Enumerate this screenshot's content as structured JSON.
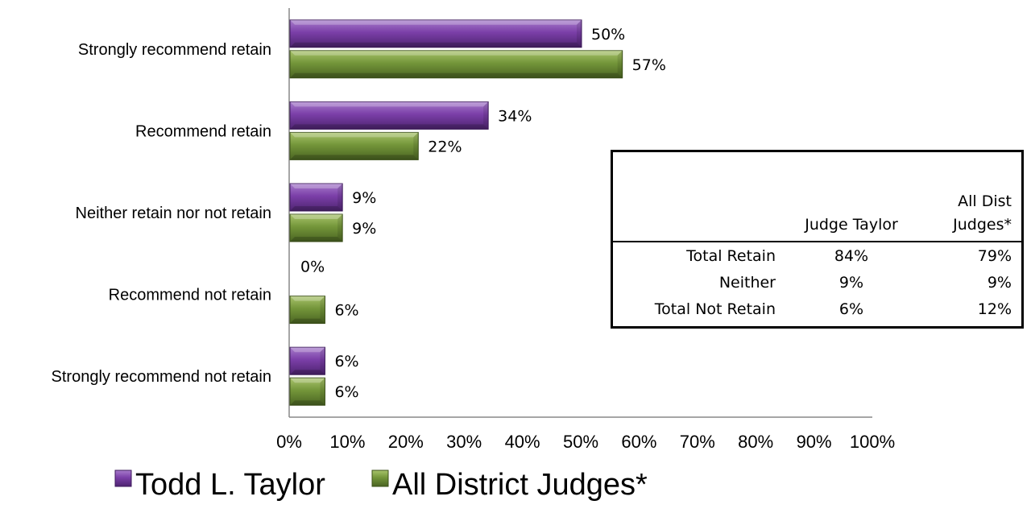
{
  "chart_data": {
    "type": "bar",
    "orientation": "horizontal",
    "categories": [
      "Strongly recommend retain",
      "Recommend retain",
      "Neither retain nor not retain",
      "Recommend not retain",
      "Strongly recommend not retain"
    ],
    "series": [
      {
        "name": "Todd L. Taylor",
        "values": [
          50,
          34,
          9,
          0,
          6
        ],
        "labels": [
          "50%",
          "34%",
          "9%",
          "0%",
          "6%"
        ],
        "color": "#7B3FA8"
      },
      {
        "name": "All District Judges*",
        "values": [
          57,
          22,
          9,
          6,
          6
        ],
        "labels": [
          "57%",
          "22%",
          "9%",
          "6%",
          "6%"
        ],
        "color": "#74963A"
      }
    ],
    "xlim": [
      0,
      100
    ],
    "x_ticks": [
      "0%",
      "10%",
      "20%",
      "30%",
      "40%",
      "50%",
      "60%",
      "70%",
      "80%",
      "90%",
      "100%"
    ],
    "legend_position": "bottom",
    "grid": false
  },
  "summary_table": {
    "headers": [
      "",
      "Judge Taylor",
      "All Dist Judges*"
    ],
    "rows": [
      [
        "Total Retain",
        "84%",
        "79%"
      ],
      [
        "Neither",
        "9%",
        "9%"
      ],
      [
        "Total Not Retain",
        "6%",
        "12%"
      ]
    ]
  }
}
